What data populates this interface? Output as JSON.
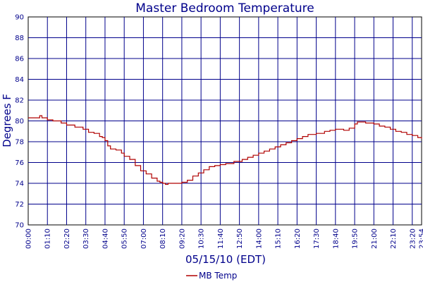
{
  "chart_data": {
    "type": "line",
    "title": "Master Bedroom Temperature",
    "xlabel": "05/15/10 (EDT)",
    "ylabel": "Degrees F",
    "ylim": [
      70,
      90
    ],
    "yticks": [
      70,
      72,
      74,
      76,
      78,
      80,
      82,
      84,
      86,
      88,
      90
    ],
    "xlim": [
      "00:00",
      "23:54"
    ],
    "xticks": [
      "00:00",
      "01:10",
      "02:20",
      "03:30",
      "04:40",
      "05:50",
      "07:00",
      "08:10",
      "09:20",
      "10:30",
      "11:40",
      "12:50",
      "14:00",
      "15:10",
      "16:20",
      "17:30",
      "18:40",
      "19:50",
      "21:00",
      "22:10",
      "23:20",
      "23:54"
    ],
    "grid": true,
    "legend_position": "bottom",
    "colors": {
      "line": "#b00000",
      "text": "#00008b",
      "grid": "#00008b",
      "axis": "#000000"
    },
    "series": [
      {
        "name": "MB Temp",
        "x": [
          "00:00",
          "00:40",
          "00:42",
          "00:50",
          "01:10",
          "01:30",
          "02:00",
          "02:20",
          "02:50",
          "03:20",
          "03:40",
          "04:00",
          "04:20",
          "04:30",
          "04:40",
          "04:50",
          "05:00",
          "05:20",
          "05:40",
          "05:50",
          "06:10",
          "06:30",
          "06:50",
          "07:10",
          "07:30",
          "07:50",
          "08:00",
          "08:10",
          "08:20",
          "08:30",
          "08:40",
          "09:00",
          "09:20",
          "09:40",
          "10:00",
          "10:20",
          "10:40",
          "11:00",
          "11:20",
          "11:40",
          "12:00",
          "12:30",
          "13:00",
          "13:20",
          "13:40",
          "14:00",
          "14:20",
          "14:40",
          "15:00",
          "15:20",
          "15:40",
          "16:00",
          "16:20",
          "16:40",
          "17:00",
          "17:30",
          "18:00",
          "18:20",
          "18:40",
          "19:00",
          "19:10",
          "19:30",
          "19:50",
          "20:00",
          "20:10",
          "20:30",
          "21:00",
          "21:20",
          "21:40",
          "22:00",
          "22:20",
          "22:40",
          "23:00",
          "23:20",
          "23:40",
          "23:54"
        ],
        "values": [
          80.3,
          80.3,
          80.5,
          80.3,
          80.1,
          80.0,
          79.8,
          79.6,
          79.4,
          79.2,
          78.9,
          78.8,
          78.5,
          78.4,
          78.1,
          77.6,
          77.3,
          77.2,
          76.9,
          76.6,
          76.3,
          75.7,
          75.2,
          74.9,
          74.5,
          74.2,
          74.1,
          74.0,
          73.9,
          74.0,
          74.0,
          74.0,
          74.1,
          74.3,
          74.7,
          75.0,
          75.3,
          75.6,
          75.7,
          75.8,
          75.9,
          76.1,
          76.3,
          76.5,
          76.7,
          76.9,
          77.1,
          77.3,
          77.5,
          77.7,
          77.9,
          78.1,
          78.3,
          78.5,
          78.7,
          78.8,
          79.0,
          79.1,
          79.2,
          79.2,
          79.1,
          79.3,
          79.7,
          79.9,
          79.9,
          79.8,
          79.7,
          79.5,
          79.4,
          79.2,
          79.0,
          78.9,
          78.7,
          78.6,
          78.4,
          78.3
        ]
      }
    ]
  }
}
